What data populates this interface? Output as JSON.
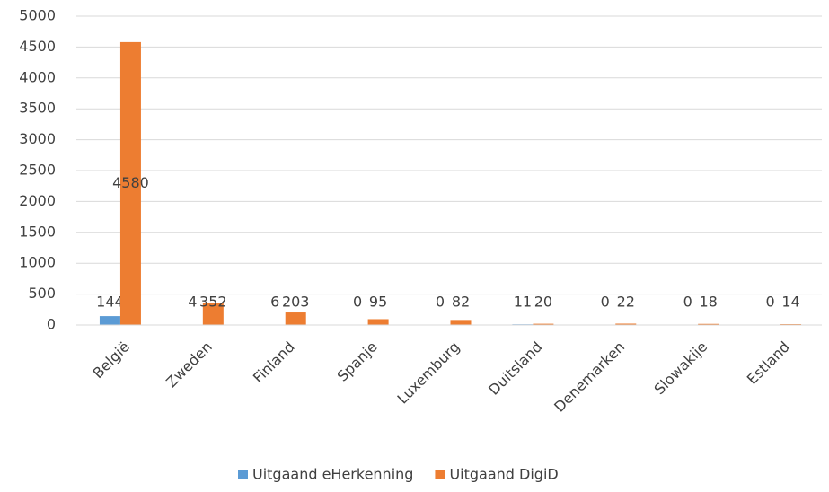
{
  "chart_data": {
    "type": "bar",
    "categories": [
      "België",
      "Zweden",
      "Finland",
      "Spanje",
      "Luxemburg",
      "Duitsland",
      "Denemarken",
      "Slowakije",
      "Estland"
    ],
    "series": [
      {
        "name": "Uitgaand eHerkenning",
        "color": "#5b9bd5",
        "values": [
          144,
          4,
          6,
          0,
          0,
          11,
          0,
          0,
          0
        ]
      },
      {
        "name": "Uitgaand DigiD",
        "color": "#ed7d31",
        "values": [
          4580,
          352,
          203,
          95,
          82,
          20,
          22,
          18,
          14
        ]
      }
    ],
    "ylim": [
      0,
      5000
    ],
    "yticks": [
      0,
      500,
      1000,
      1500,
      2000,
      2500,
      3000,
      3500,
      4000,
      4500,
      5000
    ],
    "grid": true,
    "legend": "bottom"
  }
}
